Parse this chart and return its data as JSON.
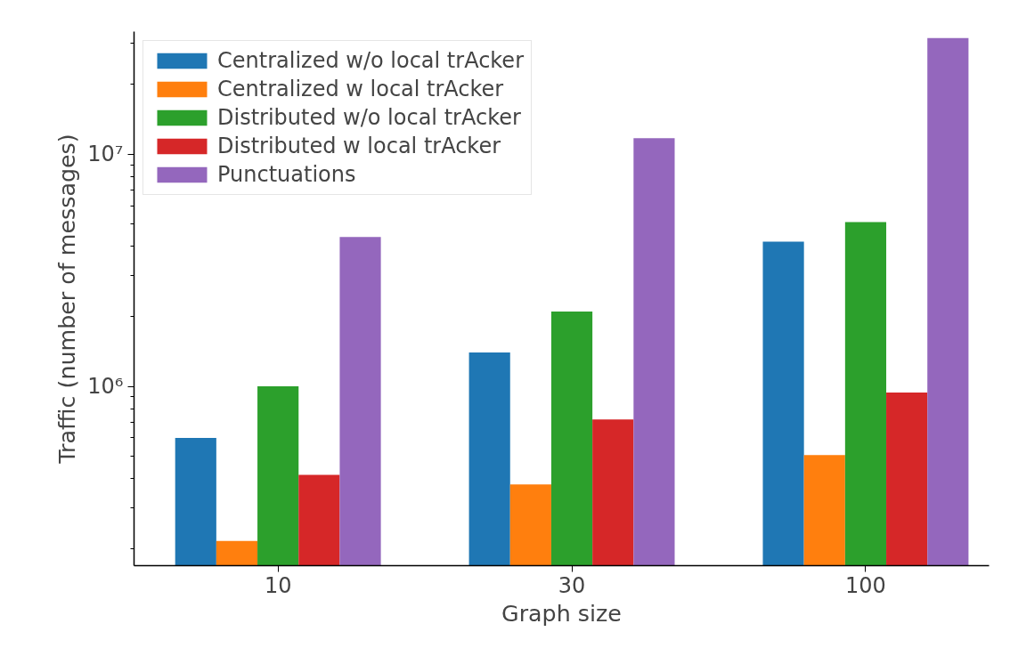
{
  "chart_data": {
    "type": "bar",
    "xlabel": "Graph size",
    "ylabel": "Traffic (number of messages)",
    "categories": [
      "10",
      "30",
      "100"
    ],
    "series": [
      {
        "name": "Centralized w/o local trAcker",
        "color": "#1f77b4",
        "values": [
          600000,
          1400000,
          4200000
        ]
      },
      {
        "name": "Centralized w local trAcker",
        "color": "#ff7f0e",
        "values": [
          216000,
          378000,
          506000
        ]
      },
      {
        "name": "Distributed w/o local trAcker",
        "color": "#2ca02c",
        "values": [
          1000000,
          2100000,
          5100000
        ]
      },
      {
        "name": "Distributed w local trAcker",
        "color": "#d62728",
        "values": [
          416000,
          720000,
          940000
        ]
      },
      {
        "name": "Punctuations",
        "color": "#9467bd",
        "values": [
          4400000,
          11700000,
          31600000
        ]
      }
    ],
    "log": "y",
    "ylim": [
      169000,
      33700000
    ],
    "yticks": [
      {
        "value": 200000,
        "label": null
      },
      {
        "value": 300000,
        "label": null
      },
      {
        "value": 400000,
        "label": null
      },
      {
        "value": 500000,
        "label": null
      },
      {
        "value": 600000,
        "label": null
      },
      {
        "value": 700000,
        "label": null
      },
      {
        "value": 800000,
        "label": null
      },
      {
        "value": 900000,
        "label": null
      },
      {
        "value": 1000000,
        "label": "10⁶"
      },
      {
        "value": 2000000,
        "label": null
      },
      {
        "value": 3000000,
        "label": null
      },
      {
        "value": 4000000,
        "label": null
      },
      {
        "value": 5000000,
        "label": null
      },
      {
        "value": 6000000,
        "label": null
      },
      {
        "value": 7000000,
        "label": null
      },
      {
        "value": 8000000,
        "label": null
      },
      {
        "value": 9000000,
        "label": null
      },
      {
        "value": 10000000,
        "label": "10⁷"
      },
      {
        "value": 20000000,
        "label": null
      },
      {
        "value": 30000000,
        "label": null
      }
    ],
    "grid": false,
    "legend": "top left"
  }
}
